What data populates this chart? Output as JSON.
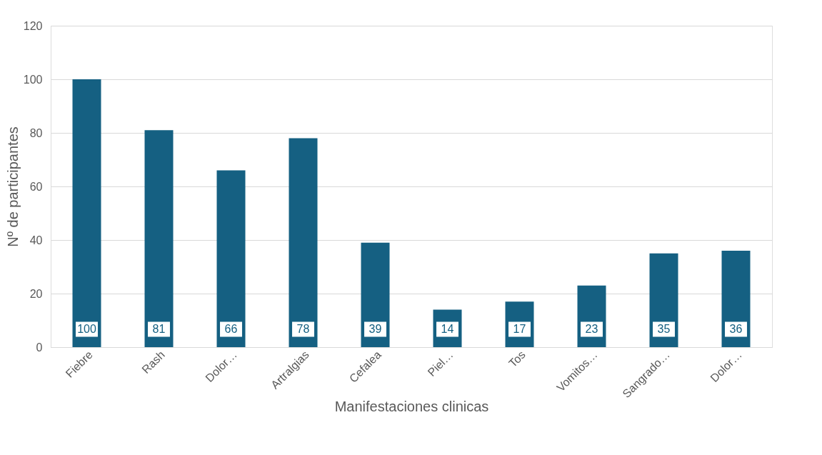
{
  "chart_data": {
    "type": "bar",
    "xlabel": "Manifestaciones clinicas",
    "ylabel": "Nº de participantes",
    "categories": [
      "Fiebre",
      "Rash",
      "Dolor…",
      "Artralgias",
      "Cefalea",
      "Piel…",
      "Tos",
      "Vomitos…",
      "Sangrado…",
      "Dolor…"
    ],
    "values": [
      100,
      81,
      66,
      78,
      39,
      14,
      17,
      23,
      35,
      36
    ],
    "color": "#156082",
    "ylim": [
      0,
      120
    ],
    "yticks": [
      0,
      20,
      40,
      60,
      80,
      100,
      120
    ],
    "grid": "y",
    "data_labels": true
  }
}
